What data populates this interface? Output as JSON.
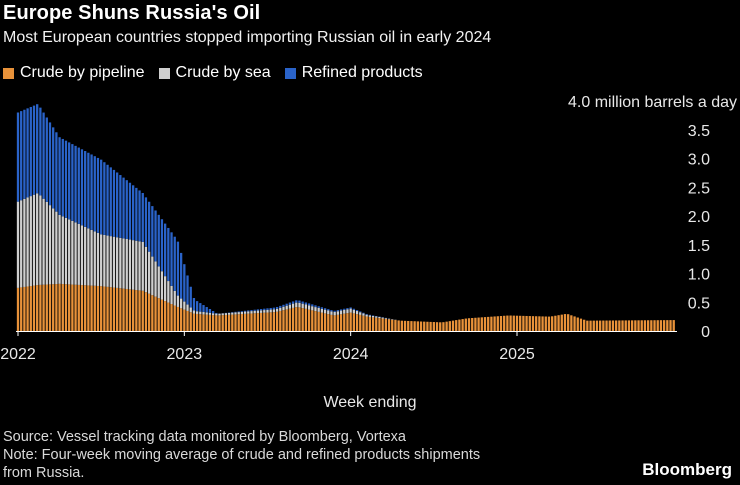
{
  "header": {
    "title": "Europe Shuns Russia's Oil",
    "subtitle": "Most European countries stopped importing Russian oil in early 2024"
  },
  "legend": [
    {
      "label": "Crude by pipeline",
      "color": "#e8923a"
    },
    {
      "label": "Crude by sea",
      "color": "#cfcfcf"
    },
    {
      "label": "Refined products",
      "color": "#2a63c9"
    }
  ],
  "footer": {
    "xlabel": "Week ending",
    "source": "Source: Vessel tracking data monitored by Bloomberg, Vortexa",
    "note_line1": "Note: Four-week moving average of crude and refined products shipments",
    "note_line2": "from Russia.",
    "brand": "Bloomberg"
  },
  "chart_data": {
    "type": "bar",
    "stacked": true,
    "y_unit_label": "4.0 million barrels a day",
    "ylim": [
      0,
      4.0
    ],
    "yticks": [
      {
        "value": 0,
        "label": "0"
      },
      {
        "value": 0.5,
        "label": "0.5"
      },
      {
        "value": 1.0,
        "label": "1.0"
      },
      {
        "value": 1.5,
        "label": "1.5"
      },
      {
        "value": 2.0,
        "label": "2.0"
      },
      {
        "value": 2.5,
        "label": "2.5"
      },
      {
        "value": 3.0,
        "label": "3.0"
      },
      {
        "value": 3.5,
        "label": "3.5"
      }
    ],
    "xticks": [
      {
        "value": 2022,
        "label": "2022"
      },
      {
        "value": 2023,
        "label": "2023"
      },
      {
        "value": 2024,
        "label": "2024"
      },
      {
        "value": 2025,
        "label": "2025"
      }
    ],
    "xlim": [
      2022.0,
      2025.95
    ],
    "frequency": "weekly",
    "key_points": [
      {
        "x": 2022.0,
        "pipeline": 0.75,
        "sea": 1.5,
        "refined": 1.55
      },
      {
        "x": 2022.12,
        "pipeline": 0.8,
        "sea": 1.6,
        "refined": 1.55
      },
      {
        "x": 2022.25,
        "pipeline": 0.82,
        "sea": 1.2,
        "refined": 1.35
      },
      {
        "x": 2022.5,
        "pipeline": 0.78,
        "sea": 0.9,
        "refined": 1.3
      },
      {
        "x": 2022.75,
        "pipeline": 0.7,
        "sea": 0.85,
        "refined": 0.85
      },
      {
        "x": 2022.96,
        "pipeline": 0.42,
        "sea": 0.2,
        "refined": 0.95
      },
      {
        "x": 2023.06,
        "pipeline": 0.3,
        "sea": 0.05,
        "refined": 0.2
      },
      {
        "x": 2023.2,
        "pipeline": 0.27,
        "sea": 0.03,
        "refined": 0.0
      },
      {
        "x": 2023.55,
        "pipeline": 0.33,
        "sea": 0.05,
        "refined": 0.03
      },
      {
        "x": 2023.68,
        "pipeline": 0.42,
        "sea": 0.08,
        "refined": 0.04
      },
      {
        "x": 2023.9,
        "pipeline": 0.27,
        "sea": 0.06,
        "refined": 0.02
      },
      {
        "x": 2024.0,
        "pipeline": 0.32,
        "sea": 0.07,
        "refined": 0.02
      },
      {
        "x": 2024.1,
        "pipeline": 0.25,
        "sea": 0.03,
        "refined": 0.01
      },
      {
        "x": 2024.3,
        "pipeline": 0.18,
        "sea": 0.0,
        "refined": 0.0
      },
      {
        "x": 2024.55,
        "pipeline": 0.15,
        "sea": 0.0,
        "refined": 0.0
      },
      {
        "x": 2024.7,
        "pipeline": 0.22,
        "sea": 0.0,
        "refined": 0.0
      },
      {
        "x": 2024.95,
        "pipeline": 0.27,
        "sea": 0.0,
        "refined": 0.0
      },
      {
        "x": 2025.2,
        "pipeline": 0.25,
        "sea": 0.0,
        "refined": 0.0
      },
      {
        "x": 2025.3,
        "pipeline": 0.3,
        "sea": 0.0,
        "refined": 0.0
      },
      {
        "x": 2025.42,
        "pipeline": 0.18,
        "sea": 0.0,
        "refined": 0.0
      },
      {
        "x": 2025.95,
        "pipeline": 0.19,
        "sea": 0.0,
        "refined": 0.0
      }
    ],
    "grid": false
  }
}
